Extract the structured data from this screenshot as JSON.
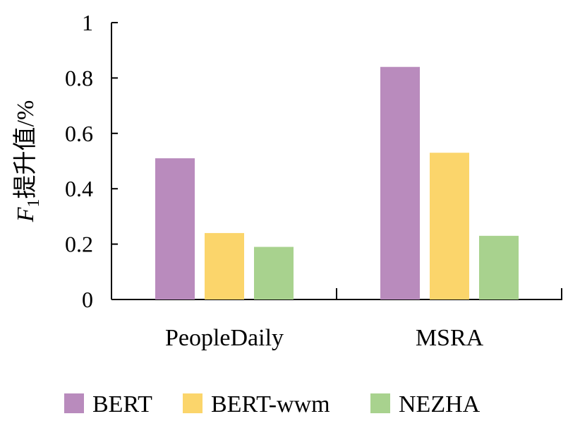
{
  "chart_data": {
    "type": "bar",
    "categories": [
      "PeopleDaily",
      "MSRA"
    ],
    "series": [
      {
        "name": "BERT",
        "values": [
          0.51,
          0.84
        ],
        "color": "#b98bbd"
      },
      {
        "name": "BERT-wwm",
        "values": [
          0.24,
          0.53
        ],
        "color": "#fbd56b"
      },
      {
        "name": "NEZHA",
        "values": [
          0.19,
          0.23
        ],
        "color": "#a8d28e"
      }
    ],
    "ylim": [
      0,
      1
    ],
    "yticks": [
      0,
      0.2,
      0.4,
      0.6,
      0.8,
      1
    ],
    "ytick_labels": [
      "0",
      "0.2",
      "0.4",
      "0.6",
      "0.8",
      "1"
    ],
    "ylabel": {
      "symbol": "F",
      "subscript": "1",
      "text": "提升值/%"
    },
    "xlabel": "",
    "grid": false,
    "legend": "bottom"
  }
}
